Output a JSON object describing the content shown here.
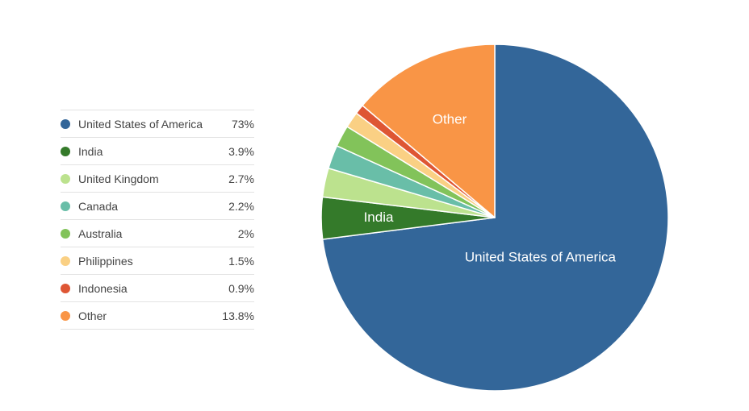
{
  "chart_data": {
    "type": "pie",
    "categories": [
      "United States of America",
      "India",
      "United Kingdom",
      "Canada",
      "Australia",
      "Philippines",
      "Indonesia",
      "Other"
    ],
    "values": [
      73,
      3.9,
      2.7,
      2.2,
      2,
      1.5,
      0.9,
      13.8
    ],
    "value_labels": [
      "73%",
      "3.9%",
      "2.7%",
      "2.2%",
      "2%",
      "1.5%",
      "0.9%",
      "13.8%"
    ],
    "colors": [
      "#336699",
      "#347a2a",
      "#bce28e",
      "#69bea8",
      "#82c35a",
      "#fad084",
      "#de5634",
      "#f99546"
    ],
    "slice_labels": [
      "United States of America",
      "India",
      "",
      "",
      "",
      "",
      "",
      "Other"
    ],
    "legend_position": "left"
  }
}
